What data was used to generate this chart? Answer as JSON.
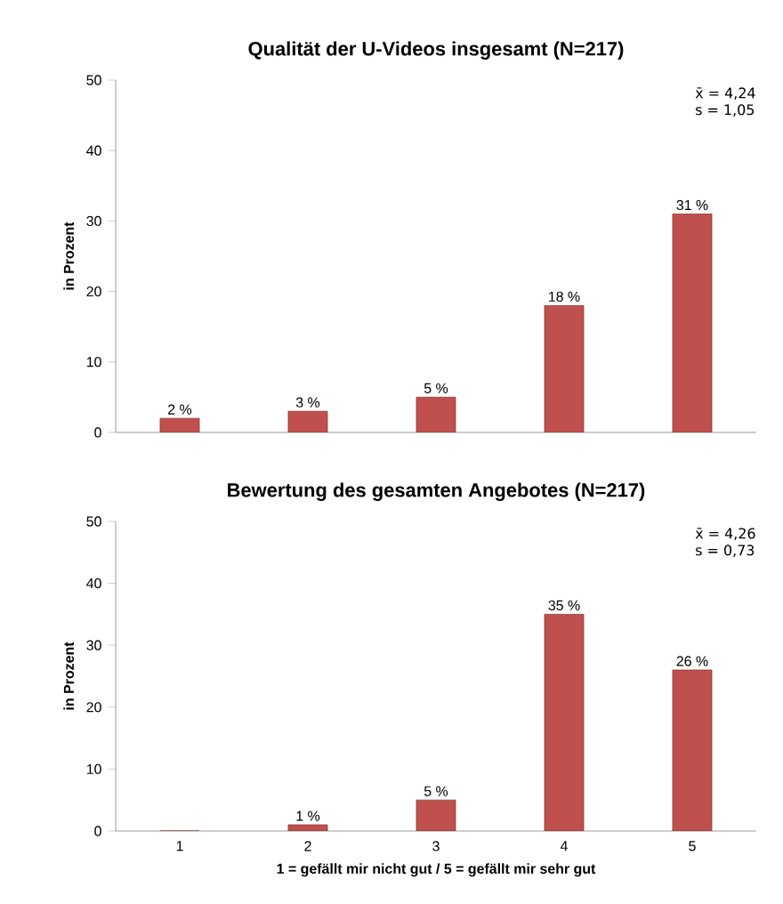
{
  "chart_data": [
    {
      "type": "bar",
      "title": "Qualität der U-Videos insgesamt (N=217)",
      "ylabel": "in Prozent",
      "categories": [
        "1",
        "2",
        "3",
        "4",
        "5"
      ],
      "values": [
        2,
        3,
        5,
        18,
        31
      ],
      "value_labels": [
        "2 %",
        "3 %",
        "5 %",
        "18 %",
        "31 %"
      ],
      "color": "#c0504d",
      "ylim": [
        0,
        50
      ],
      "yticks": [
        0,
        10,
        20,
        30,
        40,
        50
      ],
      "tick_labels": "y",
      "annotations": [
        "x̄ = 4,24",
        "s = 1,05"
      ]
    },
    {
      "type": "bar",
      "title": "Bewertung des gesamten Angebotes (N=217)",
      "xlabel": "1 = gefällt mir nicht gut / 5 = gefällt mir sehr gut",
      "ylabel": "in Prozent",
      "categories": [
        "1",
        "2",
        "3",
        "4",
        "5"
      ],
      "values": [
        0,
        1,
        5,
        35,
        26
      ],
      "value_labels": [
        null,
        "1 %",
        "5 %",
        "35 %",
        "26 %"
      ],
      "color": "#c0504d",
      "ylim": [
        0,
        50
      ],
      "yticks": [
        0,
        10,
        20,
        30,
        40,
        50
      ],
      "annotations": [
        "x̄ = 4,26",
        "s = 0,73"
      ]
    }
  ]
}
